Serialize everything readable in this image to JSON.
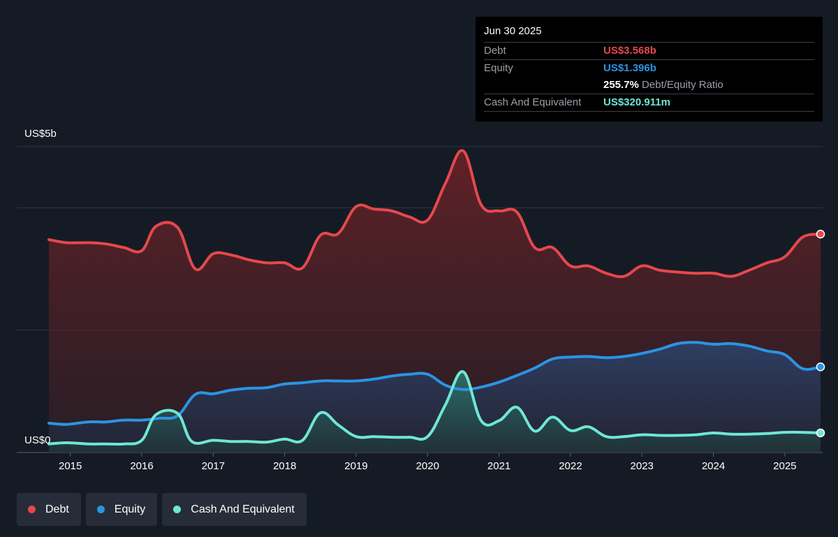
{
  "tooltip": {
    "date": "Jun 30 2025",
    "debt_label": "Debt",
    "debt_value": "US$3.568b",
    "equity_label": "Equity",
    "equity_value": "US$1.396b",
    "ratio_value": "255.7%",
    "ratio_label": "Debt/Equity Ratio",
    "cash_label": "Cash And Equivalent",
    "cash_value": "US$320.911m"
  },
  "axis": {
    "y_top_label": "US$5b",
    "y_bottom_label": "US$0"
  },
  "legend": [
    {
      "label": "Debt",
      "color": "#e5484d"
    },
    {
      "label": "Equity",
      "color": "#2b94e3"
    },
    {
      "label": "Cash And Equivalent",
      "color": "#6ee7d4"
    }
  ],
  "chart_data": {
    "type": "area",
    "y_unit": "USD billions",
    "ylim": [
      0,
      5
    ],
    "xlim": [
      2014.7,
      2025.5
    ],
    "x_ticks": [
      2015,
      2016,
      2017,
      2018,
      2019,
      2020,
      2021,
      2022,
      2023,
      2024,
      2025
    ],
    "x_tick_labels": [
      "2015",
      "2016",
      "2017",
      "2018",
      "2019",
      "2020",
      "2021",
      "2022",
      "2023",
      "2024",
      "2025"
    ],
    "y_gridlines": [
      0,
      2,
      4,
      5
    ],
    "series": [
      {
        "name": "Debt",
        "color": "#e5484d",
        "x": [
          2014.7,
          2014.95,
          2015.25,
          2015.5,
          2015.75,
          2016.0,
          2016.2,
          2016.5,
          2016.75,
          2017.0,
          2017.25,
          2017.5,
          2017.75,
          2018.0,
          2018.25,
          2018.5,
          2018.75,
          2019.0,
          2019.25,
          2019.5,
          2019.75,
          2020.0,
          2020.25,
          2020.5,
          2020.75,
          2021.0,
          2021.25,
          2021.5,
          2021.75,
          2022.0,
          2022.25,
          2022.5,
          2022.75,
          2023.0,
          2023.25,
          2023.5,
          2023.75,
          2024.0,
          2024.25,
          2024.5,
          2024.75,
          2025.0,
          2025.25,
          2025.5
        ],
        "y": [
          3.48,
          3.43,
          3.43,
          3.41,
          3.35,
          3.3,
          3.7,
          3.68,
          3.0,
          3.25,
          3.23,
          3.15,
          3.1,
          3.1,
          3.02,
          3.55,
          3.58,
          4.02,
          3.98,
          3.95,
          3.85,
          3.8,
          4.4,
          4.93,
          4.05,
          3.95,
          3.93,
          3.35,
          3.35,
          3.05,
          3.05,
          2.93,
          2.88,
          3.05,
          2.98,
          2.95,
          2.93,
          2.93,
          2.88,
          2.98,
          3.1,
          3.2,
          3.52,
          3.57
        ]
      },
      {
        "name": "Equity",
        "color": "#2b94e3",
        "x": [
          2014.7,
          2014.95,
          2015.25,
          2015.5,
          2015.75,
          2016.0,
          2016.25,
          2016.5,
          2016.75,
          2017.0,
          2017.25,
          2017.5,
          2017.75,
          2018.0,
          2018.25,
          2018.5,
          2018.75,
          2019.0,
          2019.25,
          2019.5,
          2019.75,
          2020.0,
          2020.25,
          2020.5,
          2020.75,
          2021.0,
          2021.25,
          2021.5,
          2021.75,
          2022.0,
          2022.25,
          2022.5,
          2022.75,
          2023.0,
          2023.25,
          2023.5,
          2023.75,
          2024.0,
          2024.25,
          2024.5,
          2024.75,
          2025.0,
          2025.25,
          2025.5
        ],
        "y": [
          0.48,
          0.46,
          0.5,
          0.5,
          0.53,
          0.53,
          0.56,
          0.6,
          0.95,
          0.96,
          1.02,
          1.05,
          1.06,
          1.12,
          1.14,
          1.17,
          1.17,
          1.17,
          1.2,
          1.25,
          1.28,
          1.28,
          1.1,
          1.03,
          1.07,
          1.15,
          1.26,
          1.38,
          1.53,
          1.56,
          1.57,
          1.55,
          1.57,
          1.62,
          1.69,
          1.78,
          1.8,
          1.77,
          1.78,
          1.74,
          1.66,
          1.6,
          1.37,
          1.4
        ]
      },
      {
        "name": "Cash And Equivalent",
        "color": "#6ee7d4",
        "x": [
          2014.7,
          2014.95,
          2015.25,
          2015.5,
          2015.75,
          2016.0,
          2016.2,
          2016.5,
          2016.7,
          2017.0,
          2017.25,
          2017.5,
          2017.75,
          2018.0,
          2018.25,
          2018.5,
          2018.75,
          2019.0,
          2019.25,
          2019.5,
          2019.75,
          2020.0,
          2020.25,
          2020.5,
          2020.75,
          2021.0,
          2021.25,
          2021.5,
          2021.75,
          2022.0,
          2022.25,
          2022.5,
          2022.75,
          2023.0,
          2023.25,
          2023.5,
          2023.75,
          2024.0,
          2024.25,
          2024.5,
          2024.75,
          2025.0,
          2025.25,
          2025.5
        ],
        "y": [
          0.14,
          0.16,
          0.14,
          0.14,
          0.14,
          0.2,
          0.62,
          0.64,
          0.18,
          0.2,
          0.18,
          0.18,
          0.17,
          0.22,
          0.2,
          0.65,
          0.45,
          0.26,
          0.26,
          0.25,
          0.25,
          0.26,
          0.78,
          1.32,
          0.52,
          0.52,
          0.74,
          0.35,
          0.58,
          0.36,
          0.42,
          0.26,
          0.26,
          0.29,
          0.28,
          0.28,
          0.29,
          0.32,
          0.3,
          0.3,
          0.31,
          0.33,
          0.33,
          0.32
        ]
      }
    ]
  }
}
